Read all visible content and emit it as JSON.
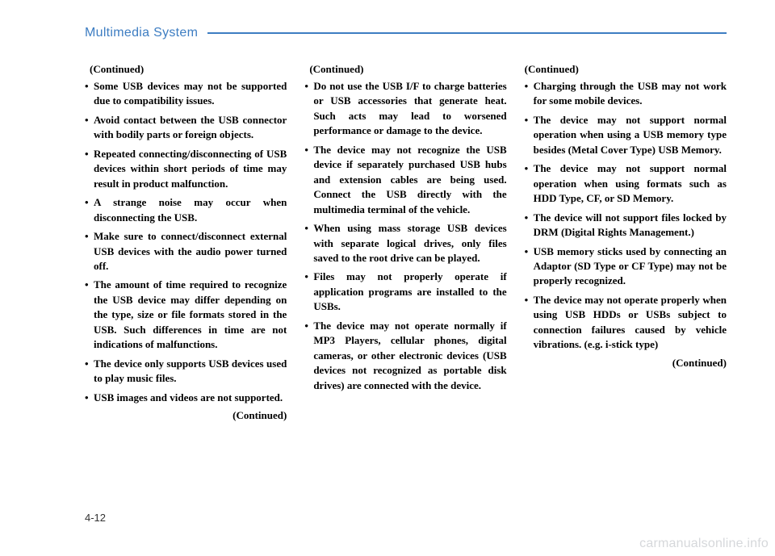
{
  "section_title": "Multimedia System",
  "page_number": "4-12",
  "watermark": "carmanualsonline.info",
  "continued": "(Continued)",
  "col1": {
    "items": [
      "Some USB devices may not be supported due to compatibility issues.",
      "Avoid contact between the USB connector with bodily parts or foreign objects.",
      "Repeated connecting/disconnecting of USB devices within short periods of time may result in product malfunction.",
      "A strange noise may occur when disconnecting the USB.",
      "Make sure to connect/disconnect external USB devices with the audio power turned off.",
      "The amount of time required to recognize the USB device may differ depending on the type, size or file formats stored in the USB. Such differences in time are not indications of malfunctions.",
      "The device only supports USB devices used to play music files.",
      "USB images and videos are not supported."
    ]
  },
  "col2": {
    "items": [
      "Do not use the USB I/F to charge batteries or USB accessories that generate heat. Such acts may lead to worsened performance or damage to the device.",
      "The device may not recognize the USB device if separately purchased USB hubs and extension cables are being used. Connect the USB directly with the multimedia terminal of the vehicle.",
      "When using mass storage USB devices with separate logical drives, only files saved to the root drive can be played.",
      "Files may not properly operate if application programs are installed to the USBs.",
      "The device may not operate normally if MP3 Players, cellular phones, digital cameras, or other electronic devices (USB devices not recognized as portable disk drives) are connected with the device."
    ]
  },
  "col3": {
    "items": [
      "Charging through the USB may not work for some mobile devices.",
      "The device may not support normal operation when using a USB memory type besides (Metal Cover Type) USB Memory.",
      "The device may not support normal operation when using formats such as HDD Type, CF, or SD Memory.",
      "The device will not support files locked by DRM (Digital Rights Management.)",
      "USB memory sticks used by connecting an Adaptor (SD Type or CF Type) may not be properly recognized.",
      "The device may not operate properly when using USB HDDs or USBs subject to connection failures caused by vehicle vibrations. (e.g. i-stick type)"
    ]
  }
}
